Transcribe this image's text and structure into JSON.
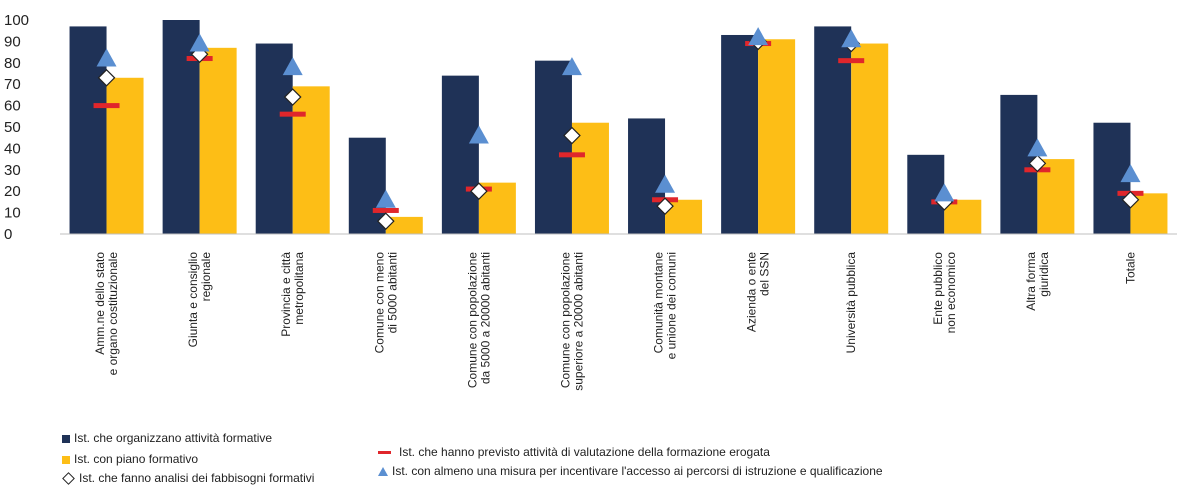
{
  "chart_data": {
    "type": "bar",
    "ylim": [
      0,
      100
    ],
    "yticks": [
      0,
      10,
      20,
      30,
      40,
      50,
      60,
      70,
      80,
      90,
      100
    ],
    "categories": [
      [
        "Amm.ne dello stato",
        "e organo costituzionale"
      ],
      [
        "Giunta e consiglio",
        "regionale"
      ],
      [
        "Provincia e città",
        "metropolitana"
      ],
      [
        "Comune con meno",
        "di 5000 abitanti"
      ],
      [
        "Comune con popolazione",
        "da 5000 a 20000 abitanti"
      ],
      [
        "Comune con popolazione",
        "superiore a 20000 abitanti"
      ],
      [
        "Comunità montane",
        "e unione dei comuni"
      ],
      [
        "Azienda o ente",
        "del SSN"
      ],
      [
        "Università pubblica"
      ],
      [
        "Ente pubblico",
        "non economico"
      ],
      [
        "Altra forma",
        "giuridica"
      ],
      [
        "Totale"
      ]
    ],
    "series": [
      {
        "name": "Ist. che organizzano attività formative",
        "kind": "bar",
        "color": "#1f3257",
        "values": [
          97,
          100,
          89,
          45,
          74,
          81,
          54,
          93,
          97,
          37,
          65,
          52
        ]
      },
      {
        "name": "Ist. con piano formativo",
        "kind": "bar",
        "color": "#fdbe16",
        "values": [
          73,
          87,
          69,
          8,
          24,
          52,
          16,
          91,
          89,
          16,
          35,
          19
        ]
      },
      {
        "name": "Ist. che fanno analisi dei fabbisogni formativi",
        "kind": "diamond",
        "color": "#ffffff",
        "values": [
          73,
          84,
          64,
          6,
          20,
          46,
          13,
          90,
          89,
          15,
          33,
          16
        ]
      },
      {
        "name": "Ist. che hanno previsto attività di valutazione della formazione erogata",
        "kind": "dash",
        "color": "#e0262b",
        "values": [
          60,
          82,
          56,
          11,
          21,
          37,
          16,
          89,
          81,
          15,
          30,
          19
        ]
      },
      {
        "name": "Ist. con almeno una misura per incentivare l'accesso ai percorsi di istruzione e qualificazione",
        "kind": "triangle",
        "color": "#5b8fd1",
        "values": [
          82,
          89,
          78,
          16,
          46,
          78,
          23,
          92,
          91,
          19,
          40,
          28
        ]
      }
    ],
    "legend": {
      "position": "bottom",
      "items": [
        "Ist. che organizzano attività formative",
        "Ist. con piano formativo",
        "Ist. che fanno analisi dei fabbisogni formativi",
        "Ist. che hanno previsto attività di valutazione della formazione erogata",
        "Ist. con almeno una misura per incentivare l'accesso ai percorsi di istruzione e qualificazione"
      ]
    },
    "grid": false
  }
}
